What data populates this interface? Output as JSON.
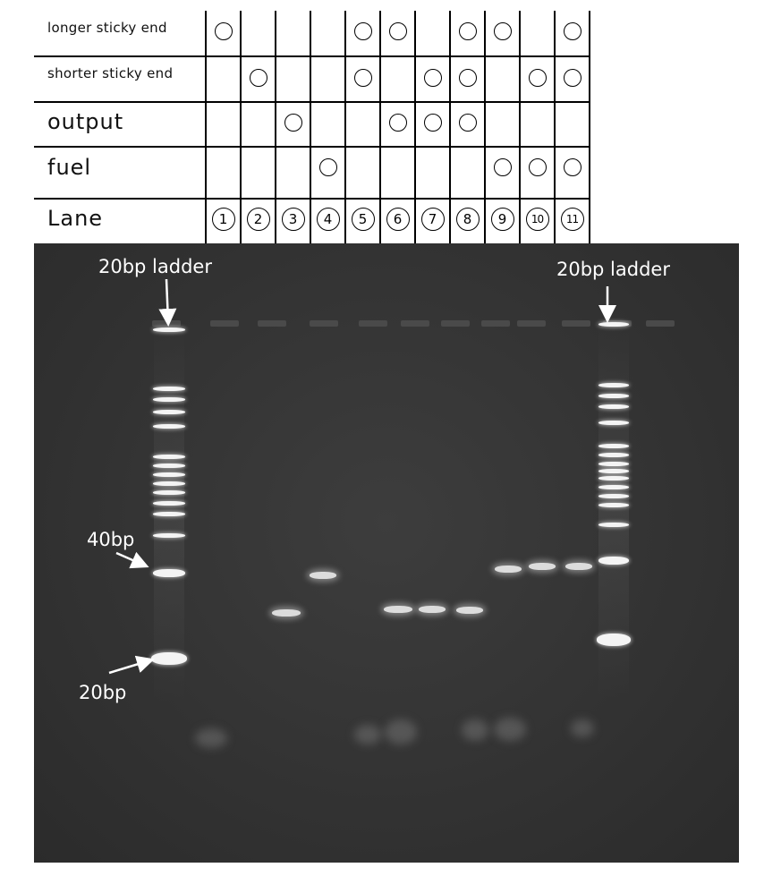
{
  "table": {
    "rows": [
      {
        "label": "longer sticky end",
        "marks": [
          1,
          0,
          0,
          0,
          1,
          1,
          0,
          1,
          1,
          0,
          1
        ]
      },
      {
        "label": "shorter sticky end",
        "marks": [
          0,
          1,
          0,
          0,
          1,
          0,
          1,
          1,
          0,
          1,
          1
        ]
      },
      {
        "label": "output",
        "marks": [
          0,
          0,
          1,
          0,
          0,
          1,
          1,
          1,
          0,
          0,
          0
        ]
      },
      {
        "label": "fuel",
        "marks": [
          0,
          0,
          0,
          1,
          0,
          0,
          0,
          0,
          1,
          1,
          1
        ]
      }
    ],
    "lane_label": "Lane",
    "lanes": [
      "1",
      "2",
      "3",
      "4",
      "5",
      "6",
      "7",
      "8",
      "9",
      "10",
      "11"
    ]
  },
  "gel": {
    "ladder_left_label": "20bp ladder",
    "ladder_right_label": "20bp ladder",
    "marker_40": "40bp",
    "marker_20": "20bp"
  }
}
